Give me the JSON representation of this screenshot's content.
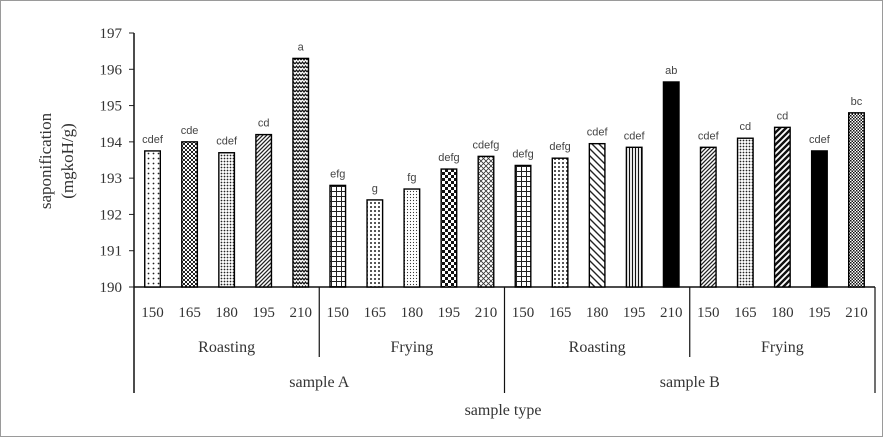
{
  "chart_data": {
    "type": "bar",
    "ylabel": "saponification",
    "ylabel_unit": "(mgkoH/g)",
    "xlabel": "sample type",
    "ylim": [
      190,
      197
    ],
    "yticks": [
      "190",
      "191",
      "192",
      "193",
      "194",
      "195",
      "196",
      "197"
    ],
    "legend": "none",
    "grid": false,
    "groups": [
      {
        "sample": "sample A",
        "methods": [
          {
            "method": "Roasting",
            "bars": [
              {
                "temp": "150",
                "value": 193.75,
                "letter": "cdef",
                "pattern": "dots-sparse"
              },
              {
                "temp": "165",
                "value": 194.0,
                "letter": "cde",
                "pattern": "checker"
              },
              {
                "temp": "180",
                "value": 193.7,
                "letter": "cdef",
                "pattern": "dots-dense"
              },
              {
                "temp": "195",
                "value": 194.2,
                "letter": "cd",
                "pattern": "diag-dense"
              },
              {
                "temp": "210",
                "value": 196.3,
                "letter": "a",
                "pattern": "zigzag"
              }
            ]
          },
          {
            "method": "Frying",
            "bars": [
              {
                "temp": "150",
                "value": 192.8,
                "letter": "efg",
                "pattern": "grid"
              },
              {
                "temp": "165",
                "value": 192.4,
                "letter": "g",
                "pattern": "dots-medium"
              },
              {
                "temp": "180",
                "value": 192.7,
                "letter": "fg",
                "pattern": "dots-tiny"
              },
              {
                "temp": "195",
                "value": 193.25,
                "letter": "defg",
                "pattern": "bricks"
              },
              {
                "temp": "210",
                "value": 193.6,
                "letter": "cdefg",
                "pattern": "crosshatch"
              }
            ]
          }
        ]
      },
      {
        "sample": "sample B",
        "methods": [
          {
            "method": "Roasting",
            "bars": [
              {
                "temp": "150",
                "value": 193.35,
                "letter": "defg",
                "pattern": "grid"
              },
              {
                "temp": "165",
                "value": 193.55,
                "letter": "defg",
                "pattern": "dots-medium"
              },
              {
                "temp": "180",
                "value": 193.95,
                "letter": "cdef",
                "pattern": "diag-wide"
              },
              {
                "temp": "195",
                "value": 193.85,
                "letter": "cdef",
                "pattern": "vertical"
              },
              {
                "temp": "210",
                "value": 195.65,
                "letter": "ab",
                "pattern": "solid"
              }
            ]
          },
          {
            "method": "Frying",
            "bars": [
              {
                "temp": "150",
                "value": 193.85,
                "letter": "cdef",
                "pattern": "diag-dense"
              },
              {
                "temp": "165",
                "value": 194.1,
                "letter": "cd",
                "pattern": "dots-dense"
              },
              {
                "temp": "180",
                "value": 194.4,
                "letter": "cd",
                "pattern": "diag-bold"
              },
              {
                "temp": "195",
                "value": 193.75,
                "letter": "cdef",
                "pattern": "solid"
              },
              {
                "temp": "210",
                "value": 194.8,
                "letter": "bc",
                "pattern": "checker-dense"
              }
            ]
          }
        ]
      }
    ]
  }
}
